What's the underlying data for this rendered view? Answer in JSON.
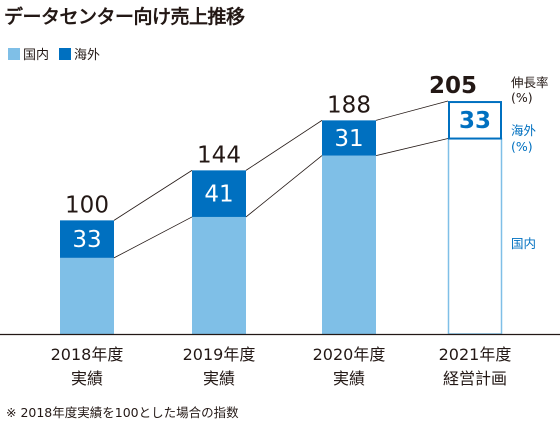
{
  "title": "データセンター向け売上推移",
  "legend": [
    {
      "label": "国内",
      "color": "#7fbfe7"
    },
    {
      "label": "海外",
      "color": "#0070c0"
    }
  ],
  "footnote": "※ 2018年度実績を100とした場合の指数",
  "colors": {
    "domestic": "#7fbfe7",
    "overseas": "#0070c0",
    "connector": "#231815",
    "axis": "#231815"
  },
  "chart_data": {
    "type": "bar",
    "stacked": true,
    "categories": [
      [
        "2018年度",
        "実績"
      ],
      [
        "2019年度",
        "実績"
      ],
      [
        "2020年度",
        "実績"
      ],
      [
        "2021年度",
        "経営計画"
      ]
    ],
    "series": [
      {
        "name": "国内",
        "values": [
          67,
          103,
          157,
          172
        ]
      },
      {
        "name": "海外",
        "values": [
          33,
          41,
          31,
          33
        ]
      }
    ],
    "totals": [
      100,
      144,
      188,
      205
    ],
    "ylim": [
      0,
      220
    ],
    "plan_index": 3,
    "annotations": {
      "growth_rate": "伸長率",
      "percent": "(%)",
      "overseas": "海外",
      "domestic": "国内"
    }
  }
}
